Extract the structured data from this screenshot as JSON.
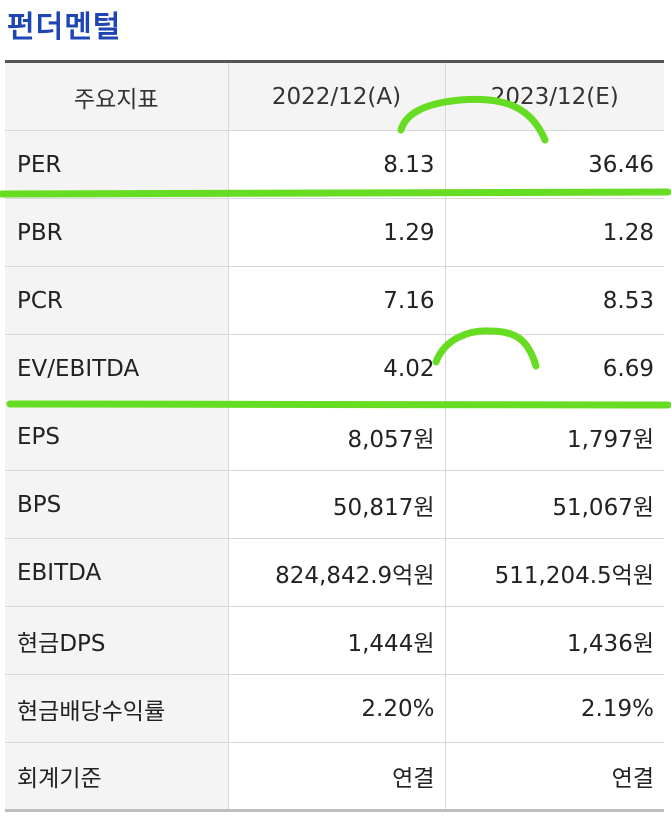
{
  "title": "펀더멘털",
  "table": {
    "headers": [
      "주요지표",
      "2022/12(A)",
      "2023/12(E)"
    ],
    "rows": [
      {
        "label": "PER",
        "v2022": "8.13",
        "v2023": "36.46"
      },
      {
        "label": "PBR",
        "v2022": "1.29",
        "v2023": "1.28"
      },
      {
        "label": "PCR",
        "v2022": "7.16",
        "v2023": "8.53"
      },
      {
        "label": "EV/EBITDA",
        "v2022": "4.02",
        "v2023": "6.69"
      },
      {
        "label": "EPS",
        "v2022": "8,057원",
        "v2023": "1,797원"
      },
      {
        "label": "BPS",
        "v2022": "50,817원",
        "v2023": "51,067원"
      },
      {
        "label": "EBITDA",
        "v2022": "824,842.9억원",
        "v2023": "511,204.5억원"
      },
      {
        "label": "현금DPS",
        "v2022": "1,444원",
        "v2023": "1,436원"
      },
      {
        "label": "현금배당수익률",
        "v2022": "2.20%",
        "v2023": "2.19%"
      },
      {
        "label": "회계기준",
        "v2022": "연결",
        "v2023": "연결"
      }
    ]
  },
  "annotation_color": "#66dd22"
}
